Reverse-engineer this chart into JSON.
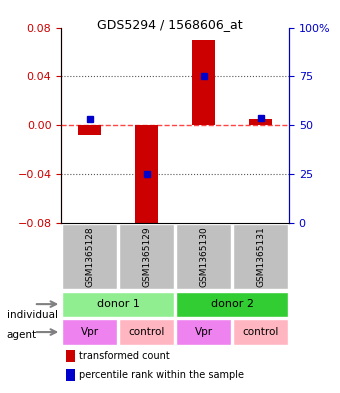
{
  "title": "GDS5294 / 1568606_at",
  "samples": [
    "GSM1365128",
    "GSM1365129",
    "GSM1365130",
    "GSM1365131"
  ],
  "red_bars": [
    -0.008,
    -0.085,
    0.07,
    0.005
  ],
  "blue_dots": [
    0.005,
    -0.04,
    0.04,
    0.006
  ],
  "ylim_left": [
    -0.08,
    0.08
  ],
  "ylim_right": [
    0,
    100
  ],
  "yticks_left": [
    -0.08,
    -0.04,
    0.0,
    0.04,
    0.08
  ],
  "yticks_right": [
    0,
    25,
    50,
    75,
    100
  ],
  "individuals": [
    {
      "label": "donor 1",
      "cols": [
        0,
        1
      ],
      "color": "#90EE90"
    },
    {
      "label": "donor 2",
      "cols": [
        2,
        3
      ],
      "color": "#32CD32"
    }
  ],
  "agents": [
    {
      "label": "Vpr",
      "col": 0,
      "color": "#EE82EE"
    },
    {
      "label": "control",
      "col": 1,
      "color": "#FFB6C1"
    },
    {
      "label": "Vpr",
      "col": 2,
      "color": "#EE82EE"
    },
    {
      "label": "control",
      "col": 3,
      "color": "#FFB6C1"
    }
  ],
  "individual_colors": [
    "#90EE90",
    "#32CD32"
  ],
  "agent_vpr_color": "#EE82EE",
  "agent_ctrl_color": "#FFB6C1",
  "sample_bg_color": "#C0C0C0",
  "bar_color": "#CC0000",
  "dot_color": "#0000CC",
  "zero_line_color": "#FF4444",
  "grid_color": "#555555",
  "left_axis_color": "#CC0000",
  "right_axis_color": "#0000CC"
}
